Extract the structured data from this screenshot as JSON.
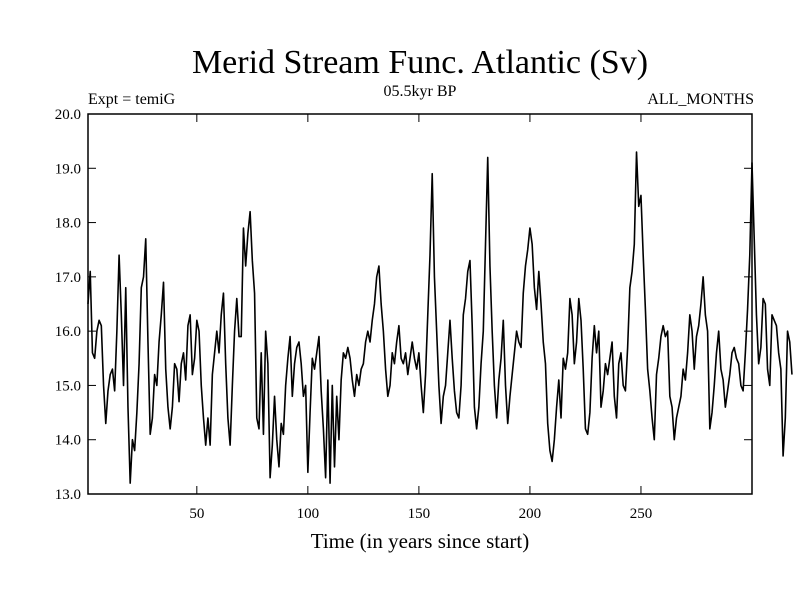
{
  "chart_data": {
    "type": "line",
    "title": "Merid Stream Func. Atlantic (Sv)",
    "subtitle_left": "Expt = temiG",
    "subtitle_center": "05.5kyr BP",
    "subtitle_right": "ALL_MONTHS",
    "xlabel": "Time (in years since start)",
    "ylabel": "",
    "xlim": [
      1,
      300
    ],
    "ylim": [
      13.0,
      20.0
    ],
    "x_ticks": [
      50,
      100,
      150,
      200,
      250
    ],
    "x_tick_labels": [
      "50",
      "100",
      "150",
      "200",
      "250"
    ],
    "y_ticks": [
      13.0,
      14.0,
      15.0,
      16.0,
      17.0,
      18.0,
      19.0,
      20.0
    ],
    "y_tick_labels": [
      "13.0",
      "14.0",
      "15.0",
      "16.0",
      "17.0",
      "18.0",
      "19.0",
      "20.0"
    ],
    "grid": false,
    "series": [
      {
        "name": "Merid Stream Func. Atlantic",
        "color": "#000000",
        "x_start": 1,
        "x_step": 1,
        "values": [
          16.5,
          17.1,
          15.6,
          15.5,
          16.0,
          16.2,
          16.1,
          15.0,
          14.3,
          14.9,
          15.2,
          15.3,
          14.9,
          16.0,
          17.4,
          16.3,
          15.0,
          16.8,
          14.6,
          13.2,
          14.0,
          13.8,
          14.5,
          15.4,
          16.8,
          17.0,
          17.7,
          15.8,
          14.1,
          14.4,
          15.2,
          15.0,
          15.8,
          16.3,
          16.9,
          15.3,
          14.6,
          14.2,
          14.6,
          15.4,
          15.3,
          14.7,
          15.4,
          15.6,
          15.1,
          16.1,
          16.3,
          15.2,
          15.5,
          16.2,
          16.0,
          15.0,
          14.4,
          13.9,
          14.4,
          13.9,
          15.2,
          15.6,
          16.0,
          15.6,
          16.3,
          16.7,
          15.4,
          14.4,
          13.9,
          15.0,
          16.0,
          16.6,
          15.9,
          15.9,
          17.9,
          17.2,
          17.8,
          18.2,
          17.3,
          16.7,
          14.4,
          14.2,
          15.6,
          14.1,
          16.0,
          15.4,
          13.3,
          13.9,
          14.8,
          14.0,
          13.5,
          14.3,
          14.1,
          15.0,
          15.5,
          15.9,
          14.8,
          15.4,
          15.7,
          15.8,
          15.4,
          14.8,
          15.0,
          13.4,
          14.5,
          15.5,
          15.3,
          15.6,
          15.9,
          14.9,
          14.2,
          13.3,
          15.1,
          13.2,
          15.0,
          13.5,
          14.8,
          14.0,
          15.1,
          15.6,
          15.5,
          15.7,
          15.5,
          15.1,
          14.8,
          15.2,
          15.0,
          15.3,
          15.4,
          15.8,
          16.0,
          15.8,
          16.2,
          16.5,
          17.0,
          17.2,
          16.5,
          16.0,
          15.3,
          14.8,
          15.0,
          15.6,
          15.4,
          15.8,
          16.1,
          15.5,
          15.4,
          15.6,
          15.2,
          15.5,
          15.8,
          15.5,
          15.3,
          15.6,
          15.0,
          14.5,
          15.2,
          16.3,
          17.4,
          18.9,
          17.0,
          16.0,
          15.0,
          14.3,
          14.8,
          15.0,
          15.6,
          16.2,
          15.5,
          14.9,
          14.5,
          14.4,
          15.0,
          16.3,
          16.6,
          17.1,
          17.3,
          16.1,
          14.6,
          14.2,
          14.6,
          15.4,
          16.0,
          17.6,
          19.2,
          17.2,
          16.0,
          15.0,
          14.4,
          15.1,
          15.5,
          16.2,
          15.0,
          14.3,
          14.8,
          15.2,
          15.6,
          16.0,
          15.8,
          15.7,
          16.7,
          17.2,
          17.5,
          17.9,
          17.6,
          16.8,
          16.4,
          17.1,
          16.5,
          15.8,
          15.4,
          14.3,
          13.8,
          13.6,
          14.0,
          14.6,
          15.1,
          14.4,
          15.5,
          15.3,
          15.6,
          16.6,
          16.3,
          15.4,
          15.8,
          16.6,
          16.2,
          15.3,
          14.2,
          14.1,
          14.5,
          15.5,
          16.1,
          15.6,
          16.0,
          14.6,
          14.9,
          15.4,
          15.2,
          15.5,
          15.8,
          14.8,
          14.4,
          15.4,
          15.6,
          15.0,
          14.9,
          15.7,
          16.8,
          17.1,
          17.6,
          19.3,
          18.3,
          18.5,
          17.4,
          16.4,
          15.3,
          14.9,
          14.4,
          14.0,
          15.2,
          15.5,
          15.9,
          16.1,
          15.9,
          16.0,
          14.8,
          14.6,
          14.0,
          14.4,
          14.6,
          14.8,
          15.3,
          15.1,
          15.6,
          16.3,
          16.0,
          15.3,
          15.9,
          16.1,
          16.5,
          17.0,
          16.3,
          16.0,
          14.2,
          14.5,
          15.0,
          15.6,
          16.0,
          15.3,
          15.1,
          14.6,
          14.9,
          15.2,
          15.6,
          15.7,
          15.5,
          15.4,
          15.0,
          14.9,
          15.6,
          16.4,
          17.4,
          19.1,
          17.7,
          16.3,
          15.4,
          15.7,
          16.6,
          16.5,
          15.3,
          15.0,
          16.3,
          16.2,
          16.1,
          15.6,
          15.3,
          13.7,
          14.4,
          16.0,
          15.8,
          15.2
        ]
      }
    ]
  }
}
